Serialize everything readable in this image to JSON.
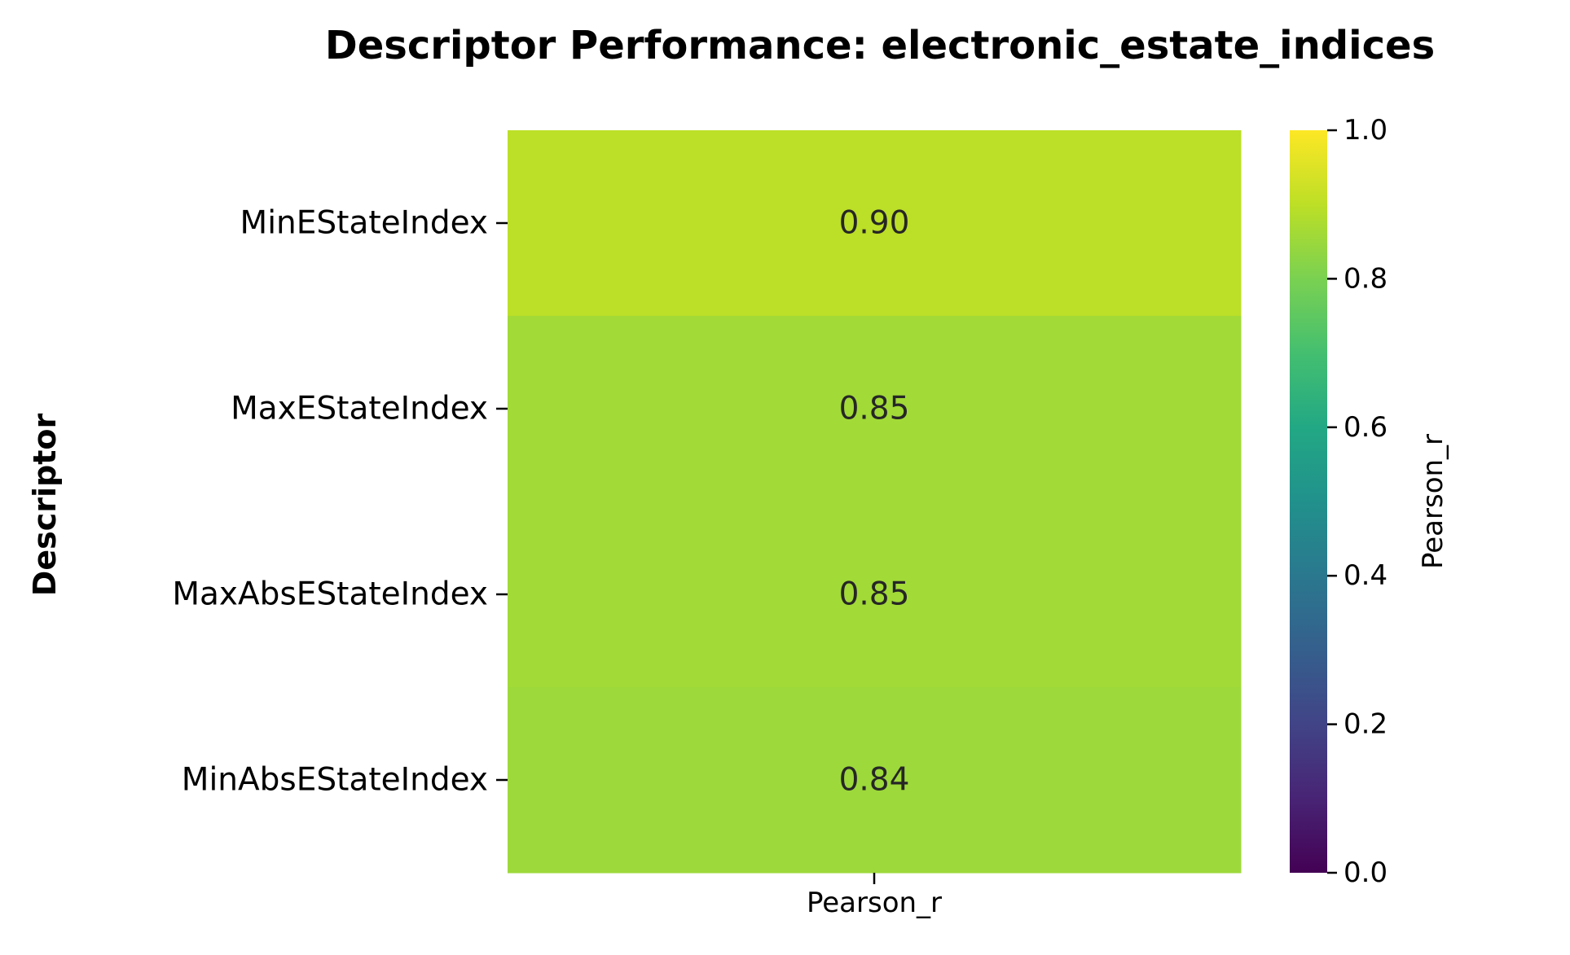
{
  "chart_data": {
    "type": "heatmap",
    "title": "Descriptor Performance: electronic_estate_indices",
    "ylabel": "Descriptor",
    "xlabel": "",
    "columns": [
      "Pearson_r"
    ],
    "rows": [
      "MinEStateIndex",
      "MaxEStateIndex",
      "MaxAbsEStateIndex",
      "MinAbsEStateIndex"
    ],
    "values": [
      [
        0.9
      ],
      [
        0.85
      ],
      [
        0.85
      ],
      [
        0.84
      ]
    ],
    "cell_labels": [
      [
        "0.90"
      ],
      [
        "0.85"
      ],
      [
        "0.85"
      ],
      [
        "0.84"
      ]
    ],
    "colormap": "viridis",
    "colorbar": {
      "label": "Pearson_r",
      "range": [
        0.0,
        1.0
      ],
      "ticks": [
        0.0,
        0.2,
        0.4,
        0.6,
        0.8,
        1.0
      ],
      "tick_labels": [
        "0.0",
        "0.2",
        "0.4",
        "0.6",
        "0.8",
        "1.0"
      ]
    },
    "grid": false,
    "cell_colors": [
      "#bcdf27",
      "#a2da37",
      "#a2da37",
      "#9dd93b"
    ]
  }
}
